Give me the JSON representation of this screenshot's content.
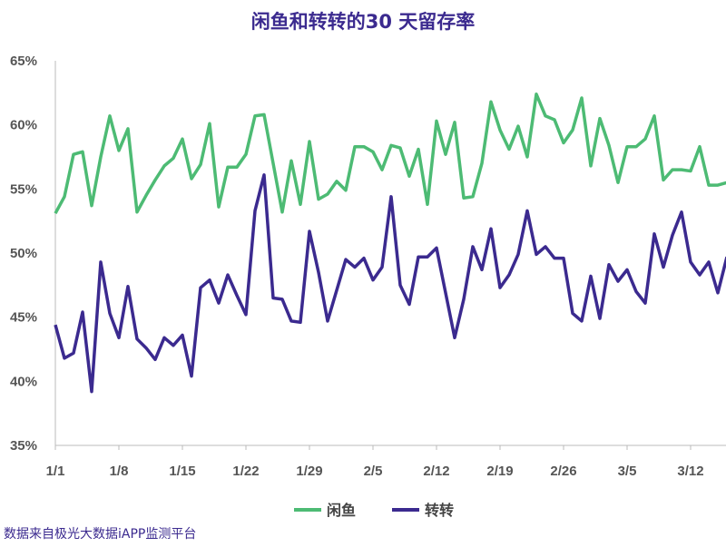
{
  "chart_data": {
    "type": "line",
    "title": "闲鱼和转转的30 天留存率",
    "source": "数据来自极光大数据iAPP监测平台",
    "ylim": [
      35,
      65
    ],
    "yticks": [
      "35%",
      "40%",
      "45%",
      "50%",
      "55%",
      "60%",
      "65%"
    ],
    "xticks": [
      "1/1",
      "1/8",
      "1/15",
      "1/22",
      "1/29",
      "2/5",
      "2/12",
      "2/19",
      "2/26",
      "3/5",
      "3/12"
    ],
    "legend_position": "bottom",
    "grid": false,
    "x": [
      "1/1",
      "1/2",
      "1/3",
      "1/4",
      "1/5",
      "1/6",
      "1/7",
      "1/8",
      "1/9",
      "1/10",
      "1/11",
      "1/12",
      "1/13",
      "1/14",
      "1/15",
      "1/16",
      "1/17",
      "1/18",
      "1/19",
      "1/20",
      "1/21",
      "1/22",
      "1/23",
      "1/24",
      "1/25",
      "1/26",
      "1/27",
      "1/28",
      "1/29",
      "1/30",
      "1/31",
      "2/1",
      "2/2",
      "2/3",
      "2/4",
      "2/5",
      "2/6",
      "2/7",
      "2/8",
      "2/9",
      "2/10",
      "2/11",
      "2/12",
      "2/13",
      "2/14",
      "2/15",
      "2/16",
      "2/17",
      "2/18",
      "2/19",
      "2/20",
      "2/21",
      "2/22",
      "2/23",
      "2/24",
      "2/25",
      "2/26",
      "2/27",
      "2/28",
      "3/1",
      "3/2",
      "3/3",
      "3/4",
      "3/5",
      "3/6",
      "3/7",
      "3/8",
      "3/9",
      "3/10",
      "3/11",
      "3/12",
      "3/13",
      "3/14",
      "3/15",
      "3/16"
    ],
    "series": [
      {
        "name": "闲鱼",
        "color": "#4dbb74",
        "values": [
          53.1,
          54.4,
          57.7,
          57.9,
          53.7,
          57.5,
          60.7,
          58.0,
          59.7,
          53.2,
          54.5,
          55.7,
          56.8,
          57.4,
          58.9,
          55.8,
          56.9,
          60.1,
          53.6,
          56.7,
          56.7,
          57.7,
          60.7,
          60.8,
          57.0,
          53.2,
          57.2,
          53.8,
          58.7,
          54.2,
          54.6,
          55.6,
          54.9,
          58.3,
          58.3,
          57.9,
          56.5,
          58.4,
          58.2,
          56.0,
          58.1,
          53.8,
          60.3,
          57.7,
          60.2,
          54.3,
          54.4,
          57.0,
          61.8,
          59.6,
          58.1,
          59.9,
          57.5,
          62.4,
          60.7,
          60.4,
          58.6,
          59.6,
          62.1,
          56.8,
          60.5,
          58.4,
          55.5,
          58.3,
          58.3,
          58.9,
          60.7,
          55.7,
          56.5,
          56.5,
          56.4,
          58.3,
          55.3,
          55.3,
          55.5
        ]
      },
      {
        "name": "转转",
        "color": "#3b2a8f",
        "values": [
          44.4,
          41.8,
          42.2,
          45.4,
          39.2,
          49.3,
          45.3,
          43.4,
          47.4,
          43.3,
          42.6,
          41.7,
          43.4,
          42.8,
          43.6,
          40.4,
          47.3,
          47.9,
          46.1,
          48.3,
          46.7,
          45.2,
          53.3,
          56.1,
          46.5,
          46.4,
          44.7,
          44.6,
          51.7,
          48.5,
          44.7,
          47.1,
          49.5,
          48.9,
          49.6,
          47.9,
          48.9,
          54.4,
          47.5,
          46.0,
          49.7,
          49.7,
          50.4,
          46.9,
          43.4,
          46.4,
          50.5,
          48.7,
          51.9,
          47.3,
          48.3,
          49.9,
          53.3,
          49.9,
          50.5,
          49.6,
          49.6,
          45.3,
          44.7,
          48.2,
          44.9,
          49.1,
          47.8,
          48.7,
          47.0,
          46.1,
          51.5,
          48.9,
          51.4,
          53.2,
          49.3,
          48.3,
          49.3,
          46.9,
          49.7
        ]
      }
    ]
  }
}
